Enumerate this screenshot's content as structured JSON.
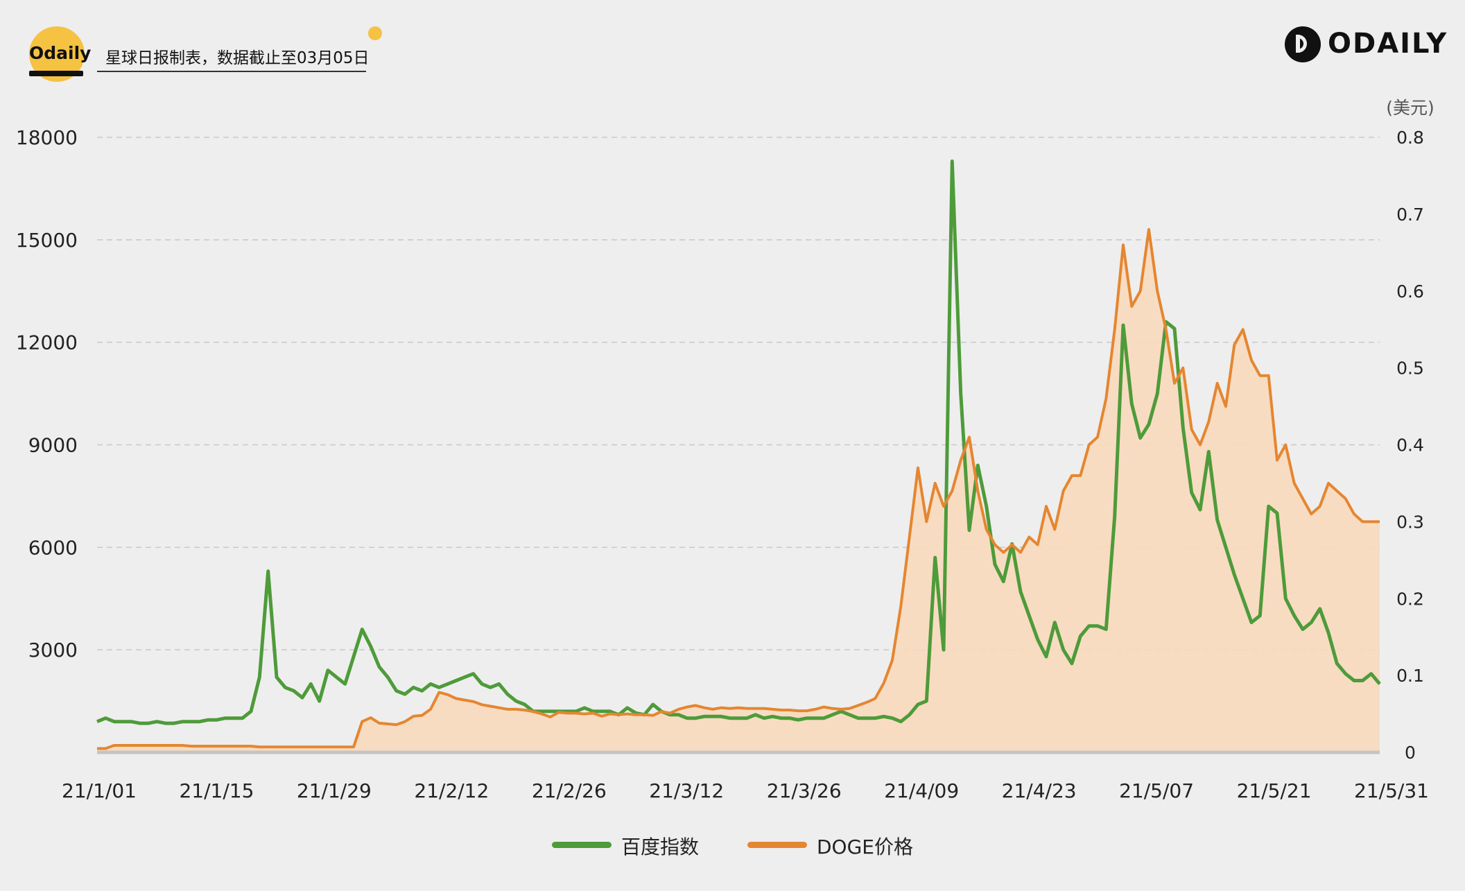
{
  "header": {
    "brand": "Odaily",
    "subtitle": "星球日报制表，数据截止至03月05日",
    "logo_text": "ODAILY"
  },
  "legend": [
    {
      "label": "百度指数",
      "color": "#4e9b3a"
    },
    {
      "label": "DOGE价格",
      "color": "#e58630"
    }
  ],
  "chart_data": {
    "type": "line",
    "x_tick_labels": [
      "21/1/01",
      "21/1/15",
      "21/1/29",
      "21/2/12",
      "21/2/26",
      "21/3/12",
      "21/3/26",
      "21/4/09",
      "21/4/23",
      "21/5/07",
      "21/5/21",
      "21/5/31"
    ],
    "y_left": {
      "ticks": [
        "18000",
        "15000",
        "12000",
        "9000",
        "6000",
        "3000"
      ],
      "range": [
        0,
        18000
      ]
    },
    "y_right": {
      "unit_label": "(美元)",
      "ticks": [
        "0.8",
        "0.7",
        "0.6",
        "0.5",
        "0.4",
        "0.3",
        "0.2",
        "0.1",
        "0"
      ],
      "range": [
        0,
        0.8
      ]
    },
    "grid": true,
    "legend_position": "bottom",
    "colors": {
      "baidu": "#4e9b3a",
      "doge": "#e58630",
      "doge_fill": "#f7d9bd"
    },
    "series": [
      {
        "name": "百度指数",
        "axis": "left",
        "x": [
          0,
          1,
          2,
          3,
          4,
          5,
          6,
          7,
          8,
          9,
          10,
          11,
          12,
          13,
          14,
          15,
          16,
          17,
          18,
          19,
          20,
          21,
          22,
          23,
          24,
          25,
          26,
          27,
          28,
          29,
          30,
          31,
          32,
          33,
          34,
          35,
          36,
          37,
          38,
          39,
          40,
          41,
          42,
          43,
          44,
          45,
          46,
          47,
          48,
          49,
          50,
          51,
          52,
          53,
          54,
          55,
          56,
          57,
          58,
          59,
          60,
          61,
          62,
          63,
          64,
          65,
          66,
          67,
          68,
          69,
          70,
          71,
          72,
          73,
          74,
          75,
          76,
          77,
          78,
          79,
          80,
          81,
          82,
          83,
          84,
          85,
          86,
          87,
          88,
          89,
          90,
          91,
          92,
          93,
          94,
          95,
          96,
          97,
          98,
          99,
          100,
          101,
          102,
          103,
          104,
          105,
          106,
          107,
          108,
          109,
          110,
          111,
          112,
          113,
          114,
          115,
          116,
          117,
          118,
          119,
          120,
          121,
          122,
          123,
          124,
          125,
          126,
          127,
          128,
          129,
          130,
          131,
          132,
          133,
          134,
          135,
          136,
          137,
          138,
          139,
          140,
          141,
          142,
          143,
          144,
          145,
          146,
          147,
          148,
          149,
          150
        ],
        "values": [
          900,
          1000,
          900,
          900,
          900,
          850,
          850,
          900,
          850,
          850,
          900,
          900,
          900,
          950,
          950,
          1000,
          1000,
          1000,
          1200,
          2200,
          5300,
          2200,
          1900,
          1800,
          1600,
          2000,
          1500,
          2400,
          2200,
          2000,
          2800,
          3600,
          3100,
          2500,
          2200,
          1800,
          1700,
          1900,
          1800,
          2000,
          1900,
          2000,
          2100,
          2200,
          2300,
          2000,
          1900,
          2000,
          1700,
          1500,
          1400,
          1200,
          1200,
          1200,
          1200,
          1200,
          1200,
          1300,
          1200,
          1200,
          1200,
          1100,
          1300,
          1150,
          1100,
          1400,
          1200,
          1100,
          1100,
          1000,
          1000,
          1050,
          1050,
          1050,
          1000,
          1000,
          1000,
          1100,
          1000,
          1050,
          1000,
          1000,
          950,
          1000,
          1000,
          1000,
          1100,
          1200,
          1100,
          1000,
          1000,
          1000,
          1050,
          1000,
          900,
          1100,
          1400,
          1500,
          5700,
          3000,
          17300,
          10500,
          6500,
          8400,
          7200,
          5500,
          5000,
          6100,
          4700,
          4000,
          3300,
          2800,
          3800,
          3000,
          2600,
          3400,
          3700,
          3700,
          3600,
          6900,
          12500,
          10200,
          9200,
          9600,
          10500,
          12600,
          12400,
          9500,
          7600,
          7100,
          8800,
          6800,
          6000,
          5200,
          4500,
          3800,
          4000,
          7200,
          7000,
          4500,
          4000,
          3600,
          3800,
          4200,
          3500,
          2600,
          2300,
          2100,
          2100,
          2300,
          2000
        ]
      },
      {
        "name": "DOGE价格",
        "axis": "right",
        "x": [
          0,
          1,
          2,
          3,
          4,
          5,
          6,
          7,
          8,
          9,
          10,
          11,
          12,
          13,
          14,
          15,
          16,
          17,
          18,
          19,
          20,
          21,
          22,
          23,
          24,
          25,
          26,
          27,
          28,
          29,
          30,
          31,
          32,
          33,
          34,
          35,
          36,
          37,
          38,
          39,
          40,
          41,
          42,
          43,
          44,
          45,
          46,
          47,
          48,
          49,
          50,
          51,
          52,
          53,
          54,
          55,
          56,
          57,
          58,
          59,
          60,
          61,
          62,
          63,
          64,
          65,
          66,
          67,
          68,
          69,
          70,
          71,
          72,
          73,
          74,
          75,
          76,
          77,
          78,
          79,
          80,
          81,
          82,
          83,
          84,
          85,
          86,
          87,
          88,
          89,
          90,
          91,
          92,
          93,
          94,
          95,
          96,
          97,
          98,
          99,
          100,
          101,
          102,
          103,
          104,
          105,
          106,
          107,
          108,
          109,
          110,
          111,
          112,
          113,
          114,
          115,
          116,
          117,
          118,
          119,
          120,
          121,
          122,
          123,
          124,
          125,
          126,
          127,
          128,
          129,
          130,
          131,
          132,
          133,
          134,
          135,
          136,
          137,
          138,
          139,
          140,
          141,
          142,
          143,
          144,
          145,
          146,
          147,
          148,
          149,
          150
        ],
        "values": [
          0.005,
          0.005,
          0.009,
          0.009,
          0.009,
          0.009,
          0.009,
          0.009,
          0.009,
          0.009,
          0.009,
          0.008,
          0.008,
          0.008,
          0.008,
          0.008,
          0.008,
          0.008,
          0.008,
          0.007,
          0.007,
          0.007,
          0.007,
          0.007,
          0.007,
          0.007,
          0.007,
          0.007,
          0.007,
          0.007,
          0.007,
          0.04,
          0.045,
          0.038,
          0.037,
          0.036,
          0.04,
          0.047,
          0.048,
          0.056,
          0.078,
          0.075,
          0.07,
          0.068,
          0.066,
          0.062,
          0.06,
          0.058,
          0.056,
          0.056,
          0.055,
          0.053,
          0.05,
          0.046,
          0.052,
          0.051,
          0.051,
          0.05,
          0.051,
          0.047,
          0.05,
          0.049,
          0.05,
          0.049,
          0.049,
          0.048,
          0.053,
          0.051,
          0.056,
          0.059,
          0.061,
          0.058,
          0.056,
          0.058,
          0.057,
          0.058,
          0.057,
          0.057,
          0.057,
          0.056,
          0.055,
          0.055,
          0.054,
          0.054,
          0.056,
          0.059,
          0.057,
          0.056,
          0.057,
          0.061,
          0.065,
          0.07,
          0.09,
          0.12,
          0.19,
          0.28,
          0.37,
          0.3,
          0.35,
          0.32,
          0.34,
          0.38,
          0.41,
          0.34,
          0.29,
          0.27,
          0.26,
          0.27,
          0.26,
          0.28,
          0.27,
          0.32,
          0.29,
          0.34,
          0.36,
          0.36,
          0.4,
          0.41,
          0.46,
          0.55,
          0.66,
          0.58,
          0.6,
          0.68,
          0.6,
          0.55,
          0.48,
          0.5,
          0.42,
          0.4,
          0.43,
          0.48,
          0.45,
          0.53,
          0.55,
          0.51,
          0.49,
          0.49,
          0.38,
          0.4,
          0.35,
          0.33,
          0.31,
          0.32,
          0.35,
          0.34,
          0.33,
          0.31,
          0.3,
          0.3,
          0.3
        ]
      }
    ]
  }
}
